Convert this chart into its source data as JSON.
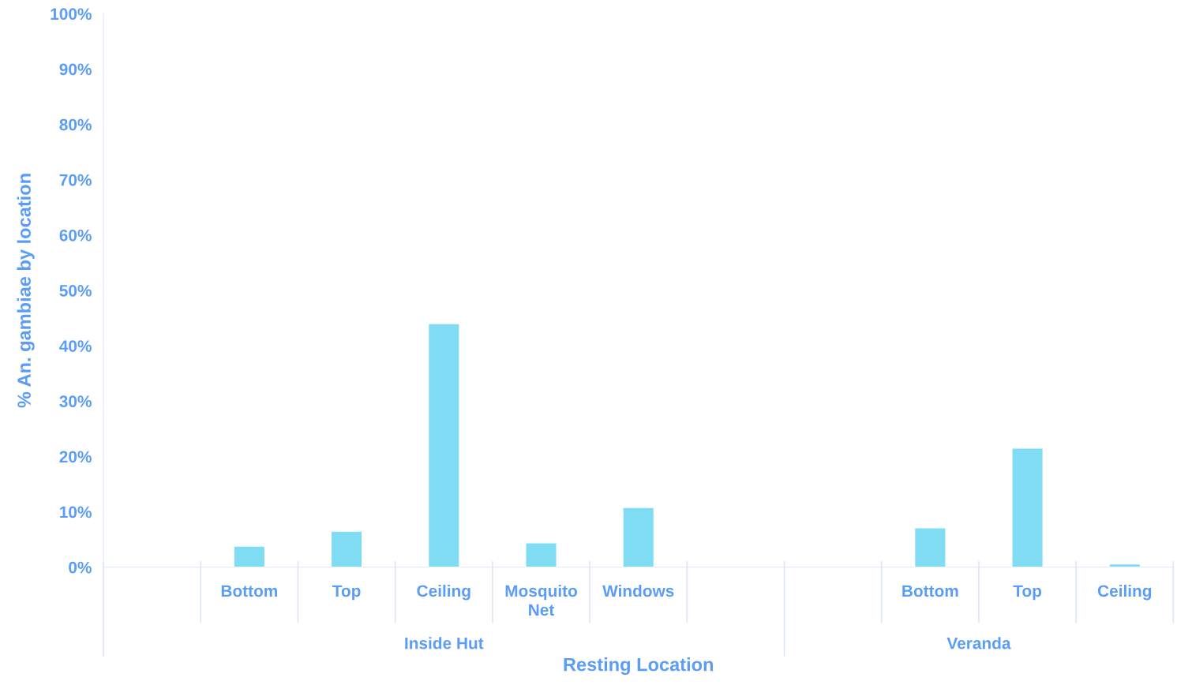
{
  "chart_data": {
    "type": "bar",
    "xlabel": "Resting Location",
    "ylabel": "% An. gambiae by location",
    "categories": [
      null,
      "Bottom",
      "Top",
      "Ceiling",
      "Mosquito Net",
      "Windows",
      null,
      null,
      "Bottom",
      "Top",
      "Ceiling"
    ],
    "values": [
      null,
      3.8,
      6.5,
      44,
      4.4,
      10.8,
      null,
      null,
      7.1,
      21.5,
      0.6
    ],
    "color": "#7fdcf2",
    "ylim": [
      0,
      100
    ],
    "yticks": [
      {
        "value": 0,
        "label": "0%"
      },
      {
        "value": 10,
        "label": "10%"
      },
      {
        "value": 20,
        "label": "20%"
      },
      {
        "value": 30,
        "label": "30%"
      },
      {
        "value": 40,
        "label": "40%"
      },
      {
        "value": 50,
        "label": "50%"
      },
      {
        "value": 60,
        "label": "60%"
      },
      {
        "value": 70,
        "label": "70%"
      },
      {
        "value": 80,
        "label": "80%"
      },
      {
        "value": 90,
        "label": "90%"
      },
      {
        "value": 100,
        "label": "100%"
      }
    ],
    "grid": false,
    "annotations": [
      "Inside Hut",
      "Veranda"
    ]
  }
}
